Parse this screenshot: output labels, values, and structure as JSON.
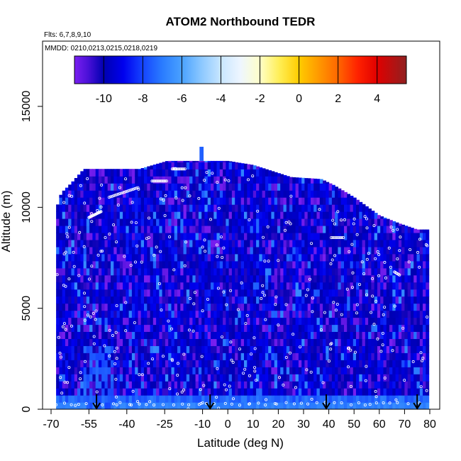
{
  "chart_data": {
    "type": "heatmap",
    "title": "ATOM2 Northbound TEDR",
    "subtitle_flights": "Flts: 6,7,8,9,10",
    "subtitle_dates": "MMDD: 0210,0213,0215,0218,0219",
    "xlabel": "Latitude (deg N)",
    "ylabel": "Altitude (m)",
    "xlim": [
      -70,
      82
    ],
    "ylim": [
      0,
      18000
    ],
    "x_ticks": [
      -70,
      -55,
      -40,
      -25,
      -10,
      0,
      10,
      20,
      30,
      40,
      50,
      60,
      70,
      80
    ],
    "y_ticks": [
      0,
      5000,
      10000,
      15000
    ],
    "colorbar": {
      "range": [
        -11.5,
        5.5
      ],
      "ticks": [
        -10,
        -8,
        -6,
        -4,
        -2,
        0,
        2,
        4
      ],
      "stops": [
        {
          "v": -11.5,
          "color": "#7a1ff0"
        },
        {
          "v": -10.8,
          "color": "#4a10d8"
        },
        {
          "v": -10.0,
          "color": "#0000b0"
        },
        {
          "v": -9.0,
          "color": "#0000ee"
        },
        {
          "v": -8.0,
          "color": "#1544ff"
        },
        {
          "v": -7.0,
          "color": "#2a7cff"
        },
        {
          "v": -6.0,
          "color": "#4aa2ff"
        },
        {
          "v": -5.0,
          "color": "#8cc8ff"
        },
        {
          "v": -4.0,
          "color": "#c8e6ff"
        },
        {
          "v": -3.0,
          "color": "#eef6ff"
        },
        {
          "v": -2.0,
          "color": "#ffffc8"
        },
        {
          "v": -1.0,
          "color": "#ffee55"
        },
        {
          "v": 0.0,
          "color": "#ffcc00"
        },
        {
          "v": 1.0,
          "color": "#ff9900"
        },
        {
          "v": 2.0,
          "color": "#ff6600"
        },
        {
          "v": 3.0,
          "color": "#ff2200"
        },
        {
          "v": 4.0,
          "color": "#e00000"
        },
        {
          "v": 5.5,
          "color": "#902020"
        }
      ]
    },
    "arrows_latitude": [
      -52,
      -7,
      39,
      75
    ],
    "heatmap_profile": [
      {
        "lat": -68,
        "top": 9900
      },
      {
        "lat": -66,
        "top": 10700
      },
      {
        "lat": -62,
        "top": 11200
      },
      {
        "lat": -57,
        "top": 11900
      },
      {
        "lat": -50,
        "top": 11900
      },
      {
        "lat": -35,
        "top": 11900
      },
      {
        "lat": -24,
        "top": 12300
      },
      {
        "lat": -10,
        "top": 12300
      },
      {
        "lat": 0,
        "top": 12300
      },
      {
        "lat": 10,
        "top": 12100
      },
      {
        "lat": 25,
        "top": 11500
      },
      {
        "lat": 37,
        "top": 11400
      },
      {
        "lat": 42,
        "top": 11100
      },
      {
        "lat": 50,
        "top": 10500
      },
      {
        "lat": 60,
        "top": 9600
      },
      {
        "lat": 68,
        "top": 9200
      },
      {
        "lat": 75,
        "top": 8900
      },
      {
        "lat": 79,
        "top": 8900
      }
    ]
  }
}
